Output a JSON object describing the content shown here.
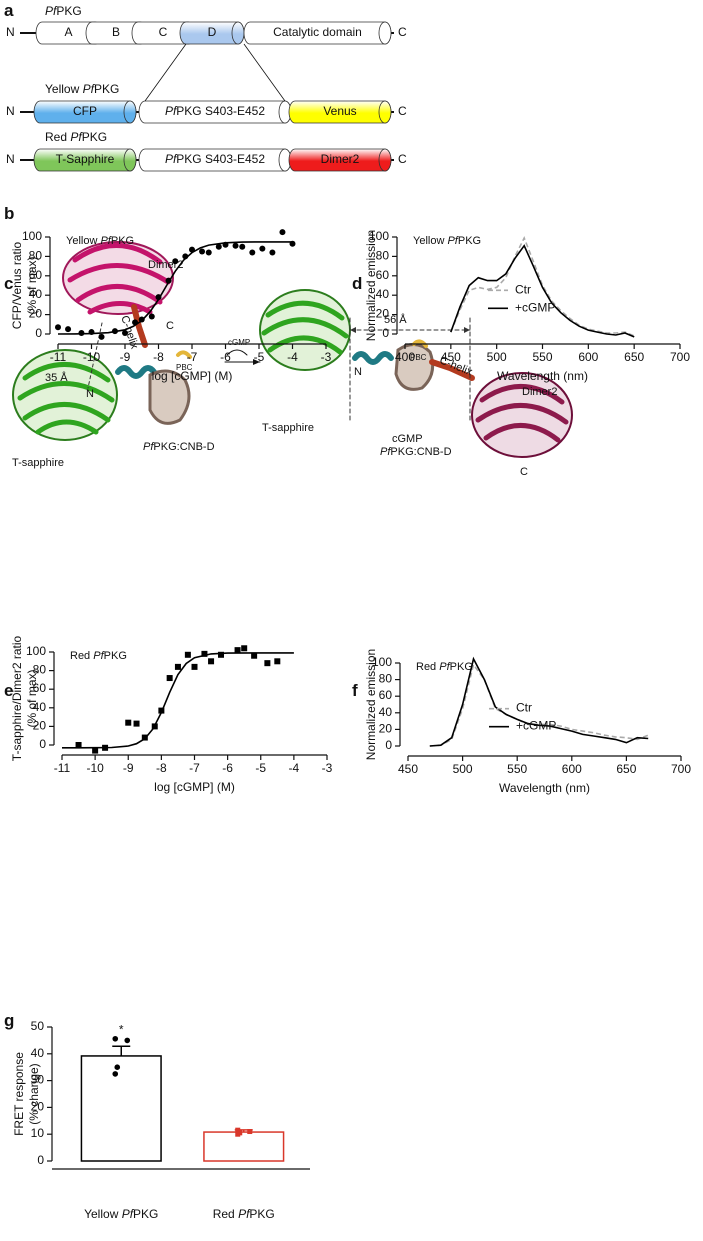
{
  "panel_labels": [
    "a",
    "b",
    "c",
    "d",
    "e",
    "f",
    "g"
  ],
  "constructs": [
    {
      "name": "PfPKG",
      "n": "N",
      "c": "C",
      "domains": [
        "A",
        "B",
        "C",
        "D",
        "Catalytic domain"
      ],
      "colors": [
        "#ffffff",
        "#ffffff",
        "#ffffff",
        "#aac8ee",
        "#ffffff"
      ]
    },
    {
      "name": "Yellow PfPKG",
      "n": "N",
      "c": "C",
      "domains": [
        "CFP",
        "PfPKG S403-E452",
        "Venus"
      ],
      "colors": [
        "#5fb0ec",
        "#ffffff",
        "#ffff00"
      ]
    },
    {
      "name": "Red PfPKG",
      "n": "N",
      "c": "C",
      "domains": [
        "T-Sapphire",
        "PfPKG S403-E452",
        "Dimer2"
      ],
      "colors": [
        "#7fc65a",
        "#ffffff",
        "#ee1c1c"
      ]
    }
  ],
  "structure": {
    "labels": [
      "Dimer2",
      "C",
      "C-helix",
      "35 Å",
      "N",
      "PBC",
      "T-sapphire",
      "PfPKG:CNB-D",
      "cGMP",
      "56 Å",
      "T-sapphire",
      "N",
      "PBC",
      "C-helix",
      "cGMP",
      "PfPKG:CNB-D",
      "Dimer2",
      "C"
    ]
  },
  "chart_data": [
    {
      "type": "scatter",
      "annotation": "Yellow PfPKG",
      "ylabel": [
        "CFP/Venus ratio",
        "(% of max)"
      ],
      "xlabel": "log [cGMP] (M)",
      "marker": "circle",
      "color": "#000000",
      "x": [
        -11,
        -10.7,
        -10.3,
        -10,
        -9.7,
        -9.3,
        -9,
        -8.7,
        -8.5,
        -8.2,
        -8,
        -7.7,
        -7.5,
        -7.2,
        -7,
        -6.7,
        -6.5,
        -6.2,
        -6,
        -5.7,
        -5.5,
        -5.2,
        -4.9,
        -4.6,
        -4.3,
        -4
      ],
      "values": [
        7,
        5,
        1,
        2,
        -3,
        3,
        1,
        12,
        15,
        18,
        38,
        55,
        75,
        80,
        87,
        85,
        84,
        90,
        92,
        91,
        90,
        84,
        88,
        84,
        105,
        93
      ],
      "fit": {
        "x": [
          -11,
          -10.5,
          -10,
          -9.5,
          -9,
          -8.75,
          -8.5,
          -8.25,
          -8,
          -7.75,
          -7.5,
          -7.25,
          -7,
          -6.75,
          -6.5,
          -6,
          -5.5,
          -5,
          -4.5,
          -4
        ],
        "values": [
          0,
          0.1,
          0.4,
          1.3,
          4.3,
          7.9,
          13.8,
          23,
          35.7,
          50.5,
          64.7,
          76.1,
          83.9,
          88.8,
          91.6,
          94,
          94.7,
          94.9,
          95,
          95
        ]
      },
      "xlim": [
        -11,
        -3
      ],
      "ylim": [
        0,
        100
      ],
      "xticks": [
        -11,
        -10,
        -9,
        -8,
        -7,
        -6,
        -5,
        -4,
        -3
      ],
      "yticks": [
        0,
        20,
        40,
        60,
        80,
        100
      ]
    },
    {
      "type": "line",
      "annotation": "Yellow PfPKG",
      "ylabel": [
        "Normalized emission"
      ],
      "xlabel": "Wavelength (nm)",
      "legend": "upper right",
      "x": [
        450,
        460,
        470,
        480,
        490,
        500,
        510,
        520,
        530,
        540,
        550,
        560,
        570,
        580,
        590,
        600,
        610,
        620,
        630,
        640,
        650
      ],
      "series": [
        {
          "name": "Ctr",
          "color": "#aaaaaa",
          "dash": true,
          "values": [
            2,
            25,
            45,
            48,
            46,
            48,
            58,
            80,
            99,
            75,
            50,
            34,
            24,
            16,
            9,
            5,
            3,
            1,
            1,
            2,
            -2
          ]
        },
        {
          "name": "+cGMP",
          "color": "#000000",
          "dash": false,
          "values": [
            2,
            28,
            50,
            58,
            55,
            55,
            62,
            78,
            91,
            70,
            48,
            32,
            22,
            14,
            8,
            4,
            2,
            0,
            -1,
            1,
            -3
          ]
        }
      ],
      "xlim": [
        400,
        700
      ],
      "ylim": [
        0,
        100
      ],
      "xticks": [
        400,
        450,
        500,
        550,
        600,
        650,
        700
      ],
      "yticks": [
        0,
        20,
        40,
        60,
        80,
        100
      ]
    },
    {
      "type": "scatter",
      "annotation": "Red PfPKG",
      "ylabel": [
        "T-sapphire/Dimer2 ratio",
        "(% of max)"
      ],
      "xlabel": "log [cGMP] (M)",
      "marker": "square",
      "color": "#000000",
      "x": [
        -10.5,
        -10,
        -9.7,
        -9,
        -8.75,
        -8.5,
        -8.2,
        -8,
        -7.75,
        -7.5,
        -7.2,
        -7,
        -6.7,
        -6.5,
        -6.2,
        -5.7,
        -5.5,
        -5.2,
        -4.8,
        -4.5
      ],
      "values": [
        0,
        -6,
        -3,
        24,
        23,
        8,
        20,
        37,
        72,
        84,
        97,
        84,
        98,
        90,
        97,
        102,
        104,
        96,
        88,
        90
      ],
      "fit": {
        "x": [
          -11,
          -10.5,
          -10,
          -9.5,
          -9,
          -8.75,
          -8.5,
          -8.25,
          -8,
          -7.75,
          -7.5,
          -7.25,
          -7,
          -6.5,
          -6,
          -5,
          -4
        ],
        "values": [
          -3,
          -3,
          -2.9,
          -2.7,
          -1.1,
          1.4,
          6.8,
          17.5,
          35.1,
          56.7,
          75.6,
          87.6,
          93.9,
          98,
          98.8,
          99,
          99
        ]
      },
      "xlim": [
        -11,
        -3
      ],
      "ylim": [
        0,
        100
      ],
      "xticks": [
        -11,
        -10,
        -9,
        -8,
        -7,
        -6,
        -5,
        -4,
        -3
      ],
      "yticks": [
        0,
        20,
        40,
        60,
        80,
        100
      ]
    },
    {
      "type": "line",
      "annotation": "Red PfPKG",
      "ylabel": [
        "Normalized emission"
      ],
      "xlabel": "Wavelength (nm)",
      "legend": "upper right",
      "x": [
        470,
        480,
        490,
        500,
        510,
        520,
        530,
        540,
        550,
        560,
        570,
        580,
        590,
        600,
        610,
        620,
        630,
        640,
        650,
        660,
        670
      ],
      "series": [
        {
          "name": "Ctr",
          "color": "#aaaaaa",
          "dash": true,
          "values": [
            0,
            1,
            8,
            45,
            98,
            80,
            45,
            38,
            32,
            26,
            26,
            26,
            24,
            20,
            18,
            16,
            13,
            11,
            10,
            8,
            13
          ]
        },
        {
          "name": "+cGMP",
          "color": "#000000",
          "dash": false,
          "values": [
            0,
            1,
            10,
            50,
            105,
            80,
            47,
            38,
            32,
            27,
            25,
            24,
            21,
            18,
            14,
            12,
            10,
            8,
            4,
            10,
            9
          ]
        }
      ],
      "xlim": [
        450,
        700
      ],
      "ylim": [
        0,
        100
      ],
      "xticks": [
        450,
        500,
        550,
        600,
        650,
        700
      ],
      "yticks": [
        0,
        20,
        40,
        60,
        80,
        100
      ]
    },
    {
      "type": "bar",
      "ylabel": [
        "FRET response",
        "(% change)"
      ],
      "categories": [
        "Yellow PfPKG",
        "Red PfPKG"
      ],
      "values": [
        39.2,
        10.8
      ],
      "errors": [
        3.6,
        0.8
      ],
      "points": [
        [
          45.6,
          45,
          35,
          32.5
        ],
        [
          11.5,
          11,
          10.5,
          10
        ]
      ],
      "colors": [
        "#000000",
        "#d9372a"
      ],
      "markers": [
        "circle",
        "square"
      ],
      "significance": "*",
      "ylim": [
        0,
        50
      ],
      "yticks": [
        0,
        10,
        20,
        30,
        40,
        50
      ]
    }
  ]
}
